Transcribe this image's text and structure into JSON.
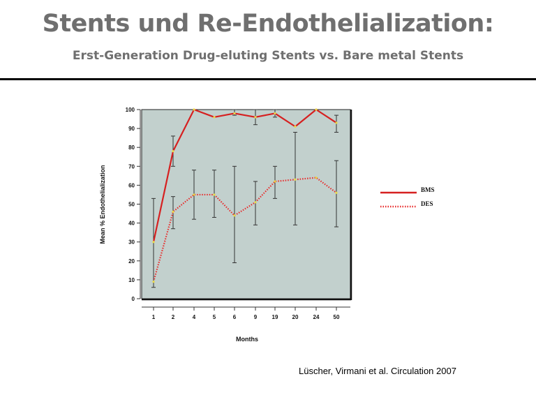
{
  "slide": {
    "title": "Stents und Re-Endothelialization:",
    "subtitle": "Erst-Generation Drug-eluting Stents vs. Bare metal Stents",
    "citation": "Lüscher, Virmani et al. Circulation 2007"
  },
  "colors": {
    "bms": "#d62020",
    "des": "#e82a2a",
    "plot_bg": "#c2d0cd",
    "marker": "#e8d84a",
    "error_bar": "#333333"
  },
  "chart_data": {
    "type": "line",
    "xlabel": "Months",
    "ylabel": "Mean % Endothelialization",
    "categories": [
      "1",
      "2",
      "4",
      "5",
      "6",
      "9",
      "19",
      "20",
      "24",
      "50"
    ],
    "ylim": [
      0,
      100
    ],
    "yticks": [
      0,
      10,
      20,
      30,
      40,
      50,
      60,
      70,
      80,
      90,
      100
    ],
    "legend_position": "right",
    "series": [
      {
        "name": "BMS",
        "style": "solid",
        "values": [
          30,
          78,
          100,
          96,
          98,
          96,
          98,
          91,
          100,
          93
        ],
        "error_low": [
          null,
          70,
          null,
          null,
          97,
          92,
          96,
          null,
          null,
          88
        ],
        "error_high": [
          null,
          86,
          null,
          null,
          100,
          100,
          100,
          null,
          null,
          97
        ]
      },
      {
        "name": "DES",
        "style": "dotted",
        "values": [
          9,
          46,
          55,
          55,
          44,
          51,
          62,
          63,
          64,
          56
        ],
        "error_low": [
          6,
          37,
          42,
          43,
          19,
          39,
          53,
          39,
          null,
          38
        ],
        "error_high": [
          53,
          54,
          68,
          68,
          70,
          62,
          70,
          88,
          null,
          73
        ]
      }
    ]
  }
}
